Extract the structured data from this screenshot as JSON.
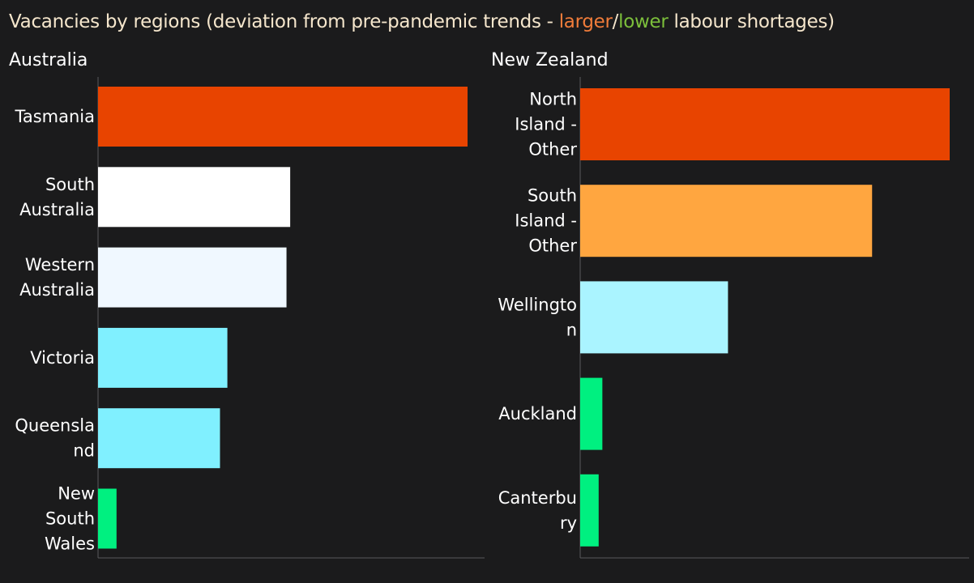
{
  "title": {
    "prefix": "Vacancies by regions (deviation from pre-pandemic trends - ",
    "larger": "larger",
    "sep": "/",
    "lower": "lower",
    "suffix": " labour shortages)",
    "larger_color": "#f07c3a",
    "lower_color": "#7cbf3b"
  },
  "chart_data": [
    {
      "type": "bar",
      "orientation": "horizontal",
      "title": "Australia",
      "categories": [
        "Tasmania",
        "South Australia",
        "Western Australia",
        "Victoria",
        "Queensland",
        "New South Wales"
      ],
      "category_lines": [
        [
          "Tasmania"
        ],
        [
          "South",
          "Australia"
        ],
        [
          "Western",
          "Australia"
        ],
        [
          "Victoria"
        ],
        [
          "Queensla",
          "nd"
        ],
        [
          "New",
          "South",
          "Wales"
        ]
      ],
      "values": [
        100,
        52,
        51,
        35,
        33,
        5
      ],
      "colors": [
        "#e84400",
        "#ffffff",
        "#f0f8ff",
        "#80f0ff",
        "#80f0ff",
        "#00f080"
      ],
      "xlim": [
        0,
        100
      ],
      "grid": false,
      "axis_ticks": "none"
    },
    {
      "type": "bar",
      "orientation": "horizontal",
      "title": "New Zealand",
      "categories": [
        "North Island - Other",
        "South Island - Other",
        "Wellington",
        "Auckland",
        "Canterbury"
      ],
      "category_lines": [
        [
          "North",
          "Island -",
          "Other"
        ],
        [
          "South",
          "Island -",
          "Other"
        ],
        [
          "Wellingto",
          "n"
        ],
        [
          "Auckland"
        ],
        [
          "Canterbu",
          "ry"
        ]
      ],
      "values": [
        100,
        79,
        40,
        6,
        5
      ],
      "colors": [
        "#e84400",
        "#ffa640",
        "#aaf4ff",
        "#00f080",
        "#00f080"
      ],
      "xlim": [
        0,
        100
      ],
      "grid": false,
      "axis_ticks": "none"
    }
  ]
}
